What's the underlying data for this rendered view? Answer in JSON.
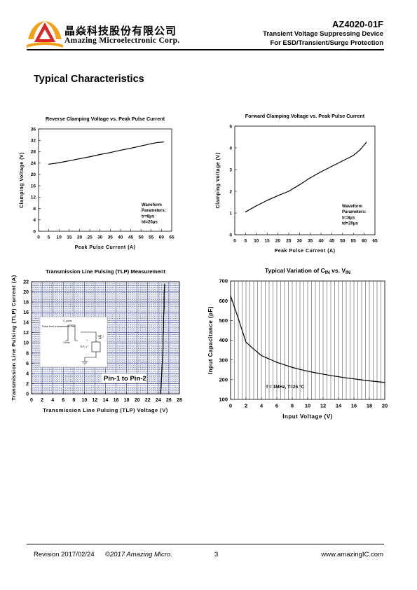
{
  "header": {
    "company_cn": "晶焱科技股份有限公司",
    "company_en": "Amazing Microelectronic Corp.",
    "part_number": "AZ4020-01F",
    "description_line1": "Transient Voltage Suppressing Device",
    "description_line2": "For ESD/Transient/Surge Protection",
    "logo_colors": {
      "red": "#d6282a",
      "orange": "#f0a21e"
    }
  },
  "section_title": "Typical Characteristics",
  "footer": {
    "revision": "Revision 2017/02/24",
    "copyright": "©2017 Amazing Micro.",
    "page": "3",
    "website": "www.amazingIC.com"
  },
  "chart_data": [
    {
      "id": "reverse",
      "type": "line",
      "title": "Reverse Clamping Voltage vs. Peak Pulse Current",
      "xlabel": "Peak Pulse Current (A)",
      "ylabel": "Clamping Voltage (V)",
      "xlim": [
        0,
        65
      ],
      "ylim": [
        0,
        36
      ],
      "xticks": [
        "0",
        "5",
        "10",
        "15",
        "20",
        "25",
        "30",
        "35",
        "40",
        "45",
        "50",
        "55",
        "60",
        "65"
      ],
      "yticks": [
        "0",
        "4",
        "8",
        "12",
        "16",
        "20",
        "24",
        "28",
        "32",
        "36"
      ],
      "grid": false,
      "annotation": [
        "Waveform",
        "Parameters:",
        "tr=8μs",
        "td=20μs"
      ],
      "series": [
        {
          "x": [
            5,
            10,
            15,
            20,
            25,
            30,
            35,
            40,
            45,
            50,
            55,
            58,
            61
          ],
          "y": [
            23.6,
            24.1,
            24.8,
            25.5,
            26.2,
            27.0,
            27.7,
            28.5,
            29.2,
            30.0,
            30.8,
            31.2,
            31.4
          ]
        }
      ]
    },
    {
      "id": "forward",
      "type": "line",
      "title": "Forward Clamping Voltage vs. Peak Pulse Current",
      "xlabel": "Peak Pulse Current (A)",
      "ylabel": "Clamping Voltage (V)",
      "xlim": [
        0,
        65
      ],
      "ylim": [
        0,
        5
      ],
      "xticks": [
        "0",
        "5",
        "10",
        "15",
        "20",
        "25",
        "30",
        "35",
        "40",
        "45",
        "50",
        "55",
        "60",
        "65"
      ],
      "yticks": [
        "0",
        "1",
        "2",
        "3",
        "4",
        "5"
      ],
      "grid": false,
      "annotation": [
        "Waveform",
        "Parameters:",
        "tr=8μs",
        "td=20μs"
      ],
      "series": [
        {
          "x": [
            5,
            10,
            15,
            20,
            25,
            30,
            35,
            40,
            45,
            50,
            55,
            58,
            61
          ],
          "y": [
            1.05,
            1.33,
            1.58,
            1.8,
            2.0,
            2.3,
            2.62,
            2.9,
            3.15,
            3.4,
            3.65,
            3.9,
            4.25
          ]
        }
      ]
    },
    {
      "id": "tlp",
      "type": "line",
      "title": "Transmission Line Pulsing (TLP) Measurement",
      "xlabel": "Transmission Line Pulsing (TLP) Voltage (V)",
      "ylabel": "Transmission Line Pulsing (TLP) Current (A)",
      "xlim": [
        0,
        28
      ],
      "ylim": [
        0,
        22
      ],
      "xticks": [
        "0",
        "2",
        "4",
        "6",
        "8",
        "10",
        "12",
        "14",
        "16",
        "18",
        "20",
        "22",
        "24",
        "26",
        "28"
      ],
      "yticks": [
        "0",
        "2",
        "4",
        "6",
        "8",
        "10",
        "12",
        "14",
        "16",
        "18",
        "20",
        "22"
      ],
      "grid": true,
      "legend_label": "Pin-1 to Pin-2",
      "inset_labels": [
        "V_pulse",
        "Pulse from a transmission line",
        "100ns",
        "TLP_V",
        "TLP_I",
        "DUT",
        "+",
        "-"
      ],
      "series": [
        {
          "x": [
            24.4,
            24.5,
            24.6,
            24.7,
            24.8,
            24.9,
            24.9,
            25.0,
            25.0,
            25.1,
            25.1,
            25.2
          ],
          "y": [
            0,
            1,
            3,
            5,
            7,
            9,
            11,
            13,
            15,
            17,
            19,
            21.5
          ]
        }
      ]
    },
    {
      "id": "capacitance",
      "type": "line",
      "title_main": "Typical Variation of C",
      "title_sub1": "IN",
      "title_mid": " vs. V",
      "title_sub2": "IN",
      "xlabel": "Input Voltage (V)",
      "ylabel": "Input Capacitance (pF)",
      "xlim": [
        0,
        20
      ],
      "ylim": [
        100,
        700
      ],
      "xticks": [
        "0",
        "2",
        "4",
        "6",
        "8",
        "10",
        "12",
        "14",
        "16",
        "18",
        "20"
      ],
      "yticks": [
        "100",
        "200",
        "300",
        "400",
        "500",
        "600",
        "700"
      ],
      "grid": "vertical",
      "annotation": "f = 1MHz, T=25 °C",
      "series": [
        {
          "x": [
            0,
            1,
            2,
            3,
            4,
            5,
            6,
            7,
            8,
            9,
            10,
            11,
            12,
            13,
            14,
            15,
            16,
            17,
            18,
            19,
            20
          ],
          "y": [
            625,
            510,
            390,
            355,
            322,
            305,
            288,
            275,
            262,
            252,
            243,
            235,
            228,
            221,
            215,
            209,
            204,
            199,
            194,
            190,
            186
          ]
        }
      ]
    }
  ]
}
